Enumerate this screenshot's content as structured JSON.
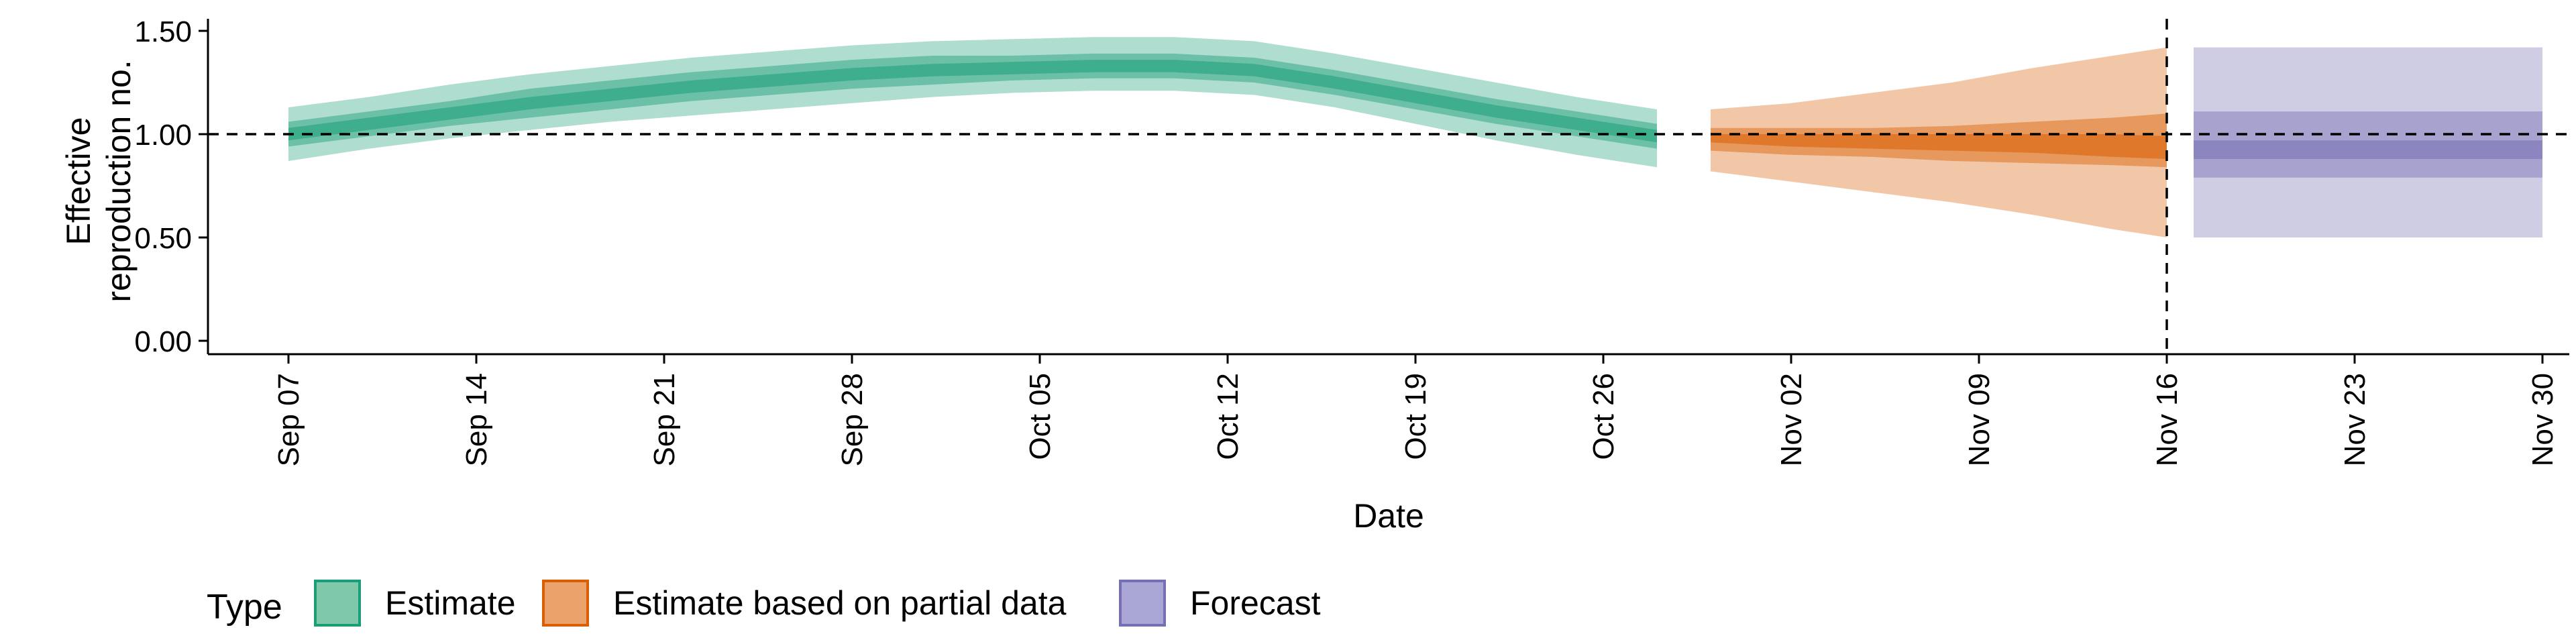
{
  "chart_data": {
    "type": "area",
    "title": "",
    "xlabel": "Date",
    "ylabel": "Effective reproduction no.",
    "ylabel_lines": [
      "Effective",
      "reproduction no."
    ],
    "yticks": [
      0,
      0.5,
      1,
      1.5
    ],
    "ytick_labels": [
      "0.00",
      "0.50",
      "1.00",
      "1.50"
    ],
    "ylim": [
      0,
      1.55
    ],
    "xlim": [
      "2020-09-04",
      "2020-12-01"
    ],
    "xticks": [
      "2020-09-07",
      "2020-09-14",
      "2020-09-21",
      "2020-09-28",
      "2020-10-05",
      "2020-10-12",
      "2020-10-19",
      "2020-10-26",
      "2020-11-02",
      "2020-11-09",
      "2020-11-16",
      "2020-11-23",
      "2020-11-30"
    ],
    "xtick_labels": [
      "Sep 07",
      "Sep 14",
      "Sep 21",
      "Sep 28",
      "Oct 05",
      "Oct 12",
      "Oct 19",
      "Oct 26",
      "Nov 02",
      "Nov 09",
      "Nov 16",
      "Nov 23",
      "Nov 30"
    ],
    "hline": 1.0,
    "vline": "2020-11-16",
    "grid": false,
    "legend": {
      "title": "Type",
      "position": "bottom-left",
      "entries": [
        {
          "label": "Estimate",
          "fill": "#7fc8a9",
          "stroke": "#1b9e77"
        },
        {
          "label": "Estimate based on partial data",
          "fill": "#eba36b",
          "stroke": "#d95f02"
        },
        {
          "label": "Forecast",
          "fill": "#aaa6d6",
          "stroke": "#7570b3"
        }
      ]
    },
    "series": [
      {
        "name": "Estimate",
        "color": "#1b9e77",
        "dates": [
          "2020-09-07",
          "2020-09-10",
          "2020-09-13",
          "2020-09-16",
          "2020-09-19",
          "2020-09-22",
          "2020-09-25",
          "2020-09-28",
          "2020-10-01",
          "2020-10-04",
          "2020-10-07",
          "2020-10-10",
          "2020-10-13",
          "2020-10-16",
          "2020-10-19",
          "2020-10-22",
          "2020-10-25",
          "2020-10-28"
        ],
        "median": [
          1.0,
          1.05,
          1.1,
          1.15,
          1.19,
          1.23,
          1.26,
          1.29,
          1.31,
          1.32,
          1.33,
          1.33,
          1.31,
          1.25,
          1.18,
          1.11,
          1.05,
          0.99
        ],
        "lower_20": [
          0.97,
          1.02,
          1.07,
          1.12,
          1.16,
          1.2,
          1.23,
          1.26,
          1.28,
          1.29,
          1.3,
          1.3,
          1.28,
          1.22,
          1.15,
          1.08,
          1.02,
          0.96
        ],
        "upper_20": [
          1.03,
          1.08,
          1.13,
          1.18,
          1.22,
          1.26,
          1.29,
          1.32,
          1.34,
          1.35,
          1.36,
          1.36,
          1.34,
          1.28,
          1.21,
          1.14,
          1.08,
          1.02
        ],
        "lower_50": [
          0.94,
          0.99,
          1.04,
          1.08,
          1.12,
          1.16,
          1.19,
          1.22,
          1.24,
          1.26,
          1.27,
          1.27,
          1.25,
          1.19,
          1.12,
          1.05,
          0.99,
          0.93
        ],
        "upper_50": [
          1.06,
          1.11,
          1.16,
          1.22,
          1.26,
          1.3,
          1.33,
          1.36,
          1.38,
          1.38,
          1.39,
          1.39,
          1.37,
          1.31,
          1.24,
          1.17,
          1.11,
          1.05
        ],
        "lower_90": [
          0.87,
          0.93,
          0.98,
          1.02,
          1.06,
          1.09,
          1.12,
          1.15,
          1.18,
          1.2,
          1.21,
          1.21,
          1.19,
          1.13,
          1.05,
          0.97,
          0.9,
          0.84
        ],
        "upper_90": [
          1.13,
          1.18,
          1.24,
          1.29,
          1.33,
          1.37,
          1.4,
          1.43,
          1.45,
          1.46,
          1.47,
          1.47,
          1.45,
          1.39,
          1.32,
          1.25,
          1.18,
          1.12
        ]
      },
      {
        "name": "Estimate based on partial data",
        "color": "#d95f02",
        "dates": [
          "2020-10-30",
          "2020-11-02",
          "2020-11-05",
          "2020-11-08",
          "2020-11-11",
          "2020-11-14",
          "2020-11-16"
        ],
        "median": [
          0.98,
          0.97,
          0.96,
          0.96,
          0.95,
          0.94,
          0.93
        ],
        "lower_20": [
          0.96,
          0.94,
          0.93,
          0.92,
          0.91,
          0.89,
          0.88
        ],
        "upper_20": [
          1.0,
          1.0,
          1.0,
          1.0,
          1.0,
          1.0,
          0.99
        ],
        "lower_50": [
          0.92,
          0.9,
          0.89,
          0.87,
          0.86,
          0.85,
          0.84
        ],
        "upper_50": [
          1.03,
          1.03,
          1.03,
          1.04,
          1.06,
          1.08,
          1.1
        ],
        "lower_90": [
          0.82,
          0.77,
          0.72,
          0.67,
          0.61,
          0.54,
          0.5
        ],
        "upper_90": [
          1.12,
          1.15,
          1.2,
          1.25,
          1.32,
          1.38,
          1.42
        ]
      },
      {
        "name": "Forecast",
        "color": "#7570b3",
        "dates": [
          "2020-11-17",
          "2020-11-30"
        ],
        "median": [
          0.94,
          0.94
        ],
        "lower_20": [
          0.88,
          0.88
        ],
        "upper_20": [
          0.97,
          0.97
        ],
        "lower_50": [
          0.79,
          0.79
        ],
        "upper_50": [
          1.11,
          1.11
        ],
        "lower_90": [
          0.5,
          0.5
        ],
        "upper_90": [
          1.42,
          1.42
        ]
      }
    ]
  }
}
